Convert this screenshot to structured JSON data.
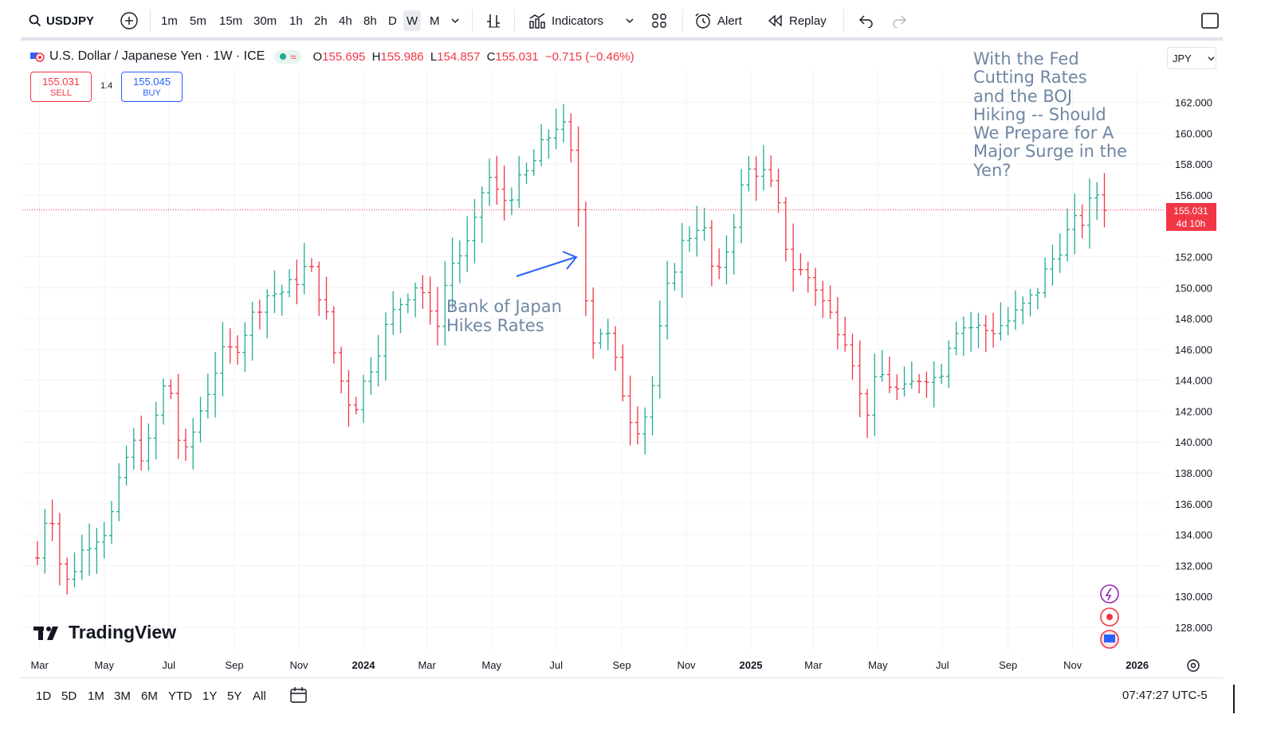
{
  "toolbar": {
    "symbol": "USDJPY",
    "intervals": [
      "1m",
      "5m",
      "15m",
      "30m",
      "1h",
      "2h",
      "4h",
      "8h",
      "D",
      "W",
      "M"
    ],
    "selected_interval": "W",
    "indicators_label": "Indicators",
    "alert_label": "Alert",
    "replay_label": "Replay"
  },
  "legend": {
    "title": "U.S. Dollar / Japanese Yen · 1W · ICE",
    "o_key": "O",
    "o": "155.695",
    "h_key": "H",
    "h": "155.986",
    "l_key": "L",
    "l": "154.857",
    "c_key": "C",
    "c": "155.031",
    "change": "−0.715 (−0.46%)"
  },
  "trade": {
    "sell_price": "155.031",
    "sell_label": "SELL",
    "spread": "1.4",
    "buy_price": "155.045",
    "buy_label": "BUY"
  },
  "currency": "JPY",
  "price_tag": {
    "price": "155.031",
    "countdown": "4d 10h"
  },
  "annotations": {
    "boj_line1": "Bank of Japan",
    "boj_line2": "Hikes Rates",
    "headline": [
      "With the Fed",
      "Cutting Rates",
      "and the BOJ",
      "Hiking -- Should",
      "We Prepare for A",
      "Major Surge in the",
      "Yen?"
    ]
  },
  "logo_text": "TradingView",
  "ranges": [
    "1D",
    "5D",
    "1M",
    "3M",
    "6M",
    "YTD",
    "1Y",
    "5Y",
    "All"
  ],
  "clock": "07:47:27 UTC-5",
  "colors": {
    "up": "#22ab94",
    "down": "#f23645",
    "note": "#6f86a3",
    "arrow": "#2962ff"
  },
  "chart_data": {
    "type": "bar",
    "chart_style": "ohlc-weekly",
    "x_ticks": [
      "Mar",
      "May",
      "Jul",
      "Sep",
      "Nov",
      "2024",
      "Mar",
      "May",
      "Jul",
      "Sep",
      "Nov",
      "2025",
      "Mar",
      "May",
      "Jul",
      "Sep",
      "Nov",
      "2026"
    ],
    "y_ticks": [
      "128.000",
      "130.000",
      "132.000",
      "134.000",
      "136.000",
      "138.000",
      "140.000",
      "142.000",
      "144.000",
      "146.000",
      "148.000",
      "150.000",
      "152.000",
      "156.000",
      "158.000",
      "160.000",
      "162.000"
    ],
    "ylim": [
      126.3,
      163.5
    ],
    "last_price": 155.031,
    "waypoints": [
      [
        "2023-02-27",
        132.5
      ],
      [
        "2023-03-10",
        136.5
      ],
      [
        "2023-03-24",
        130.5
      ],
      [
        "2023-04-14",
        133.5
      ],
      [
        "2023-05-05",
        134.5
      ],
      [
        "2023-05-26",
        140.0
      ],
      [
        "2023-06-09",
        139.0
      ],
      [
        "2023-06-30",
        144.5
      ],
      [
        "2023-07-14",
        138.5
      ],
      [
        "2023-07-28",
        141.5
      ],
      [
        "2023-08-18",
        145.5
      ],
      [
        "2023-09-01",
        146.0
      ],
      [
        "2023-09-29",
        149.5
      ],
      [
        "2023-10-20",
        149.8
      ],
      [
        "2023-11-10",
        151.5
      ],
      [
        "2023-11-24",
        149.0
      ],
      [
        "2023-12-08",
        144.5
      ],
      [
        "2023-12-22",
        142.0
      ],
      [
        "2024-01-05",
        144.5
      ],
      [
        "2024-01-26",
        148.0
      ],
      [
        "2024-02-09",
        149.5
      ],
      [
        "2024-02-23",
        150.5
      ],
      [
        "2024-03-08",
        147.0
      ],
      [
        "2024-03-22",
        151.4
      ],
      [
        "2024-04-12",
        153.0
      ],
      [
        "2024-04-26",
        157.5
      ],
      [
        "2024-05-10",
        155.5
      ],
      [
        "2024-05-31",
        157.0
      ],
      [
        "2024-06-21",
        159.5
      ],
      [
        "2024-07-05",
        161.0
      ],
      [
        "2024-07-19",
        157.5
      ],
      [
        "2024-08-02",
        146.5
      ],
      [
        "2024-08-16",
        147.5
      ],
      [
        "2024-08-30",
        144.0
      ],
      [
        "2024-09-13",
        140.8
      ],
      [
        "2024-09-27",
        142.2
      ],
      [
        "2024-10-11",
        149.0
      ],
      [
        "2024-10-25",
        152.5
      ],
      [
        "2024-11-15",
        154.5
      ],
      [
        "2024-11-29",
        150.0
      ],
      [
        "2024-12-13",
        153.5
      ],
      [
        "2024-12-27",
        157.5
      ],
      [
        "2025-01-10",
        157.7
      ],
      [
        "2025-01-24",
        156.0
      ],
      [
        "2025-02-07",
        151.5
      ],
      [
        "2025-02-28",
        150.5
      ],
      [
        "2025-03-14",
        148.5
      ],
      [
        "2025-04-04",
        146.5
      ],
      [
        "2025-04-18",
        141.5
      ],
      [
        "2025-05-02",
        144.5
      ],
      [
        "2025-05-23",
        143.0
      ],
      [
        "2025-06-13",
        144.5
      ],
      [
        "2025-06-27",
        144.0
      ],
      [
        "2025-07-11",
        147.5
      ],
      [
        "2025-07-25",
        147.5
      ],
      [
        "2025-08-15",
        147.2
      ],
      [
        "2025-09-05",
        148.0
      ],
      [
        "2025-09-26",
        149.5
      ],
      [
        "2025-10-10",
        151.5
      ],
      [
        "2025-10-31",
        154.0
      ],
      [
        "2025-11-14",
        154.5
      ],
      [
        "2025-11-21",
        156.4
      ],
      [
        "2025-12-05",
        155.0
      ]
    ]
  }
}
